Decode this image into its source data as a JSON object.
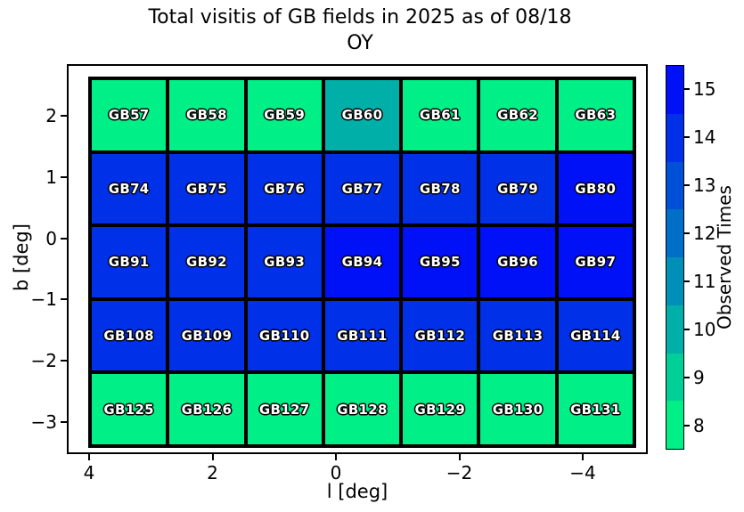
{
  "title": {
    "line1": "Total visitis of GB fields in 2025 as of 08/18",
    "line2": "OY"
  },
  "axes": {
    "xlabel": "l [deg]",
    "ylabel": "b [deg]",
    "x_tick_labels": [
      "4",
      "2",
      "0",
      "−2",
      "−4"
    ],
    "y_tick_labels": [
      "2",
      "1",
      "0",
      "−1",
      "−2",
      "−3"
    ]
  },
  "colorbar": {
    "label": "Observed Times",
    "tick_labels": [
      "15",
      "14",
      "13",
      "12",
      "11",
      "10",
      "9",
      "8"
    ]
  },
  "chart_data": {
    "type": "heatmap",
    "title": "Total visitis of GB fields in 2025 as of 08/18 OY",
    "xlabel": "l [deg]",
    "ylabel": "b [deg]",
    "colorbar_label": "Observed Times",
    "x_axis": {
      "tick_values": [
        4,
        2,
        0,
        -2,
        -4
      ],
      "reversed": true
    },
    "y_axis": {
      "tick_values": [
        2,
        1,
        0,
        -1,
        -2,
        -3
      ]
    },
    "value_range": [
      7.5,
      15.5
    ],
    "colormap": "winter_r (discrete, 8 bands)",
    "value_colors": {
      "8": "#00ef87",
      "9": "#00cf97",
      "10": "#00afa7",
      "11": "#008fb7",
      "12": "#006fc7",
      "13": "#0050d7",
      "14": "#0030e7",
      "15": "#0010f7"
    },
    "rows": [
      {
        "fields": [
          {
            "name": "GB57",
            "value": 8
          },
          {
            "name": "GB58",
            "value": 8
          },
          {
            "name": "GB59",
            "value": 8
          },
          {
            "name": "GB60",
            "value": 10
          },
          {
            "name": "GB61",
            "value": 8
          },
          {
            "name": "GB62",
            "value": 8
          },
          {
            "name": "GB63",
            "value": 8
          }
        ]
      },
      {
        "fields": [
          {
            "name": "GB74",
            "value": 14
          },
          {
            "name": "GB75",
            "value": 14
          },
          {
            "name": "GB76",
            "value": 14
          },
          {
            "name": "GB77",
            "value": 14
          },
          {
            "name": "GB78",
            "value": 14
          },
          {
            "name": "GB79",
            "value": 14
          },
          {
            "name": "GB80",
            "value": 15
          }
        ]
      },
      {
        "fields": [
          {
            "name": "GB91",
            "value": 14
          },
          {
            "name": "GB92",
            "value": 14
          },
          {
            "name": "GB93",
            "value": 14
          },
          {
            "name": "GB94",
            "value": 15
          },
          {
            "name": "GB95",
            "value": 15
          },
          {
            "name": "GB96",
            "value": 15
          },
          {
            "name": "GB97",
            "value": 15
          }
        ]
      },
      {
        "fields": [
          {
            "name": "GB108",
            "value": 14
          },
          {
            "name": "GB109",
            "value": 14
          },
          {
            "name": "GB110",
            "value": 14
          },
          {
            "name": "GB111",
            "value": 14
          },
          {
            "name": "GB112",
            "value": 14
          },
          {
            "name": "GB113",
            "value": 14
          },
          {
            "name": "GB114",
            "value": 14
          }
        ]
      },
      {
        "fields": [
          {
            "name": "GB125",
            "value": 8
          },
          {
            "name": "GB126",
            "value": 8
          },
          {
            "name": "GB127",
            "value": 8
          },
          {
            "name": "GB128",
            "value": 8
          },
          {
            "name": "GB129",
            "value": 8
          },
          {
            "name": "GB130",
            "value": 8
          },
          {
            "name": "GB131",
            "value": 8
          }
        ]
      }
    ]
  }
}
